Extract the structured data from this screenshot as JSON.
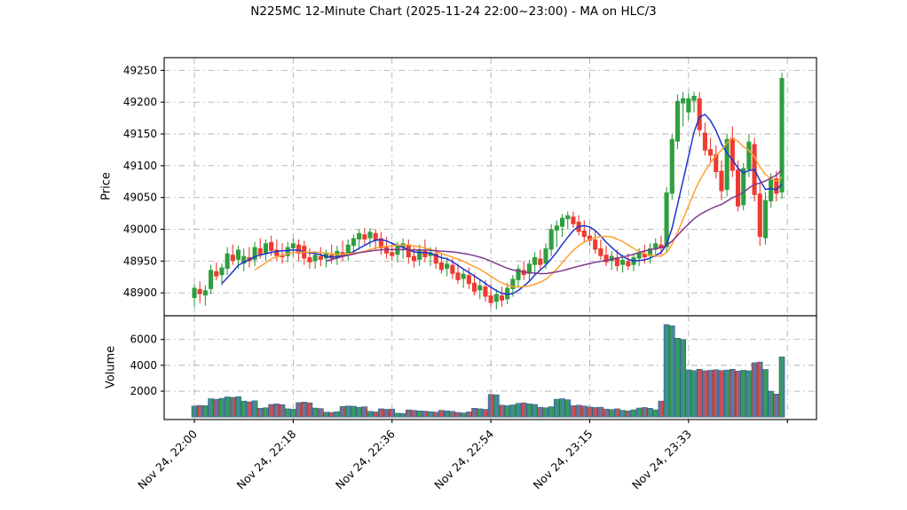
{
  "title": "N225MC 12-Minute Chart (2025-11-24 22:00~23:00) - MA on HLC/3",
  "chart_data": {
    "type": "candlestick",
    "title": "N225MC 12-Minute Chart (2025-11-24 22:00~23:00) - MA on HLC/3",
    "grid": true,
    "price_axis": {
      "label": "Price",
      "ticks": [
        48900,
        48950,
        49000,
        49050,
        49100,
        49150,
        49200,
        49250
      ],
      "ylim": [
        48864,
        49270
      ]
    },
    "volume_axis": {
      "label": "Volume",
      "ticks": [
        2000,
        4000,
        6000
      ],
      "ylim": [
        -190,
        7830
      ]
    },
    "x_axis": {
      "xlim": [
        -5.5,
        113.3
      ],
      "tick_indices": [
        0,
        18,
        36,
        54,
        72,
        90,
        108
      ],
      "tick_labels": [
        "Nov 24, 22:00",
        "Nov 24, 22:18",
        "Nov 24, 22:36",
        "Nov 24, 22:54",
        "Nov 24, 23:15",
        "Nov 24, 23:33",
        ""
      ]
    },
    "ma": {
      "source": "HLC/3",
      "windows": [
        6,
        12,
        25
      ]
    },
    "colors": {
      "up": "#2f9e3f",
      "down": "#ee3b31",
      "volume_fill": "#4a86b8",
      "volume_edge": "#27506e",
      "grid": "#b0b0b0",
      "axes": "#000000",
      "text": "#000000",
      "ma_lines": [
        "#1a35d0",
        "#ffa030",
        "#803a8c"
      ]
    },
    "candles_ohlc": [
      [
        48892,
        48914,
        48878,
        48908
      ],
      [
        48906,
        48918,
        48884,
        48898
      ],
      [
        48896,
        48912,
        48880,
        48904
      ],
      [
        48906,
        48944,
        48898,
        48936
      ],
      [
        48934,
        48948,
        48920,
        48926
      ],
      [
        48928,
        48946,
        48912,
        48940
      ],
      [
        48938,
        48972,
        48928,
        48962
      ],
      [
        48960,
        48976,
        48944,
        48950
      ],
      [
        48952,
        48974,
        48938,
        48968
      ],
      [
        48946,
        48970,
        48934,
        48958
      ],
      [
        48956,
        48972,
        48940,
        48950
      ],
      [
        48952,
        48980,
        48942,
        48972
      ],
      [
        48970,
        48986,
        48954,
        48960
      ],
      [
        48962,
        48984,
        48950,
        48978
      ],
      [
        48980,
        48990,
        48958,
        48966
      ],
      [
        48968,
        48984,
        48950,
        48958
      ],
      [
        48960,
        48978,
        48946,
        48956
      ],
      [
        48958,
        48980,
        48948,
        48972
      ],
      [
        48970,
        48986,
        48956,
        48978
      ],
      [
        48976,
        48984,
        48950,
        48962
      ],
      [
        48974,
        48982,
        48944,
        48954
      ],
      [
        48956,
        48970,
        48938,
        48948
      ],
      [
        48950,
        48966,
        48938,
        48960
      ],
      [
        48958,
        48972,
        48942,
        48952
      ],
      [
        48954,
        48968,
        48940,
        48962
      ],
      [
        48960,
        48976,
        48946,
        48954
      ],
      [
        48956,
        48974,
        48944,
        48966
      ],
      [
        48964,
        48982,
        48950,
        48958
      ],
      [
        48960,
        48984,
        48950,
        48976
      ],
      [
        48974,
        48992,
        48960,
        48986
      ],
      [
        48984,
        49000,
        48968,
        48994
      ],
      [
        48992,
        49002,
        48974,
        48984
      ],
      [
        48986,
        49002,
        48972,
        48996
      ],
      [
        48994,
        49000,
        48968,
        48982
      ],
      [
        48986,
        48996,
        48960,
        48970
      ],
      [
        48972,
        48988,
        48954,
        48962
      ],
      [
        48964,
        48980,
        48950,
        48958
      ],
      [
        48960,
        48980,
        48948,
        48974
      ],
      [
        48972,
        48986,
        48954,
        48978
      ],
      [
        48976,
        48984,
        48946,
        48956
      ],
      [
        48958,
        48972,
        48940,
        48950
      ],
      [
        48952,
        48976,
        48942,
        48968
      ],
      [
        48966,
        48984,
        48948,
        48956
      ],
      [
        48958,
        48972,
        48942,
        48964
      ],
      [
        48962,
        48972,
        48938,
        48946
      ],
      [
        48948,
        48962,
        48930,
        48936
      ],
      [
        48938,
        48956,
        48926,
        48946
      ],
      [
        48944,
        48954,
        48922,
        48930
      ],
      [
        48932,
        48946,
        48914,
        48920
      ],
      [
        48922,
        48938,
        48908,
        48930
      ],
      [
        48928,
        48940,
        48906,
        48914
      ],
      [
        48916,
        48930,
        48896,
        48902
      ],
      [
        48904,
        48922,
        48890,
        48912
      ],
      [
        48910,
        48920,
        48886,
        48894
      ],
      [
        48896,
        48914,
        48878,
        48884
      ],
      [
        48886,
        48906,
        48874,
        48898
      ],
      [
        48896,
        48910,
        48878,
        48888
      ],
      [
        48890,
        48916,
        48882,
        48908
      ],
      [
        48906,
        48928,
        48894,
        48922
      ],
      [
        48920,
        48944,
        48908,
        48938
      ],
      [
        48936,
        48950,
        48920,
        48928
      ],
      [
        48930,
        48952,
        48918,
        48946
      ],
      [
        48944,
        48964,
        48930,
        48956
      ],
      [
        48954,
        48968,
        48936,
        48944
      ],
      [
        48946,
        48978,
        48938,
        48970
      ],
      [
        48968,
        49008,
        48958,
        49000
      ],
      [
        48998,
        49014,
        48972,
        49006
      ],
      [
        49004,
        49024,
        48988,
        49018
      ],
      [
        49016,
        49028,
        49000,
        49022
      ],
      [
        49020,
        49028,
        49002,
        49008
      ],
      [
        49012,
        49022,
        48990,
        48996
      ],
      [
        48998,
        49014,
        48980,
        48988
      ],
      [
        48990,
        49004,
        48974,
        48982
      ],
      [
        48984,
        48998,
        48962,
        48968
      ],
      [
        48970,
        48984,
        48952,
        48958
      ],
      [
        48960,
        48974,
        48942,
        48948
      ],
      [
        48950,
        48966,
        48936,
        48958
      ],
      [
        48956,
        48968,
        48934,
        48942
      ],
      [
        48944,
        48960,
        48932,
        48952
      ],
      [
        48950,
        48962,
        48936,
        48942
      ],
      [
        48944,
        48962,
        48934,
        48956
      ],
      [
        48954,
        48970,
        48942,
        48964
      ],
      [
        48962,
        48976,
        48946,
        48956
      ],
      [
        48958,
        48978,
        48946,
        48970
      ],
      [
        48968,
        48986,
        48956,
        48978
      ],
      [
        48976,
        48990,
        48960,
        48970
      ],
      [
        48972,
        49066,
        48962,
        49058
      ],
      [
        49056,
        49150,
        49046,
        49142
      ],
      [
        49138,
        49212,
        49126,
        49202
      ],
      [
        49198,
        49216,
        49162,
        49206
      ],
      [
        49184,
        49214,
        49172,
        49206
      ],
      [
        49202,
        49216,
        49184,
        49210
      ],
      [
        49206,
        49216,
        49146,
        49156
      ],
      [
        49152,
        49168,
        49116,
        49124
      ],
      [
        49126,
        49144,
        49106,
        49116
      ],
      [
        49118,
        49132,
        49080,
        49090
      ],
      [
        49092,
        49108,
        49046,
        49060
      ],
      [
        49062,
        49150,
        49052,
        49142
      ],
      [
        49144,
        49162,
        49082,
        49092
      ],
      [
        49094,
        49108,
        49028,
        49036
      ],
      [
        49038,
        49104,
        49030,
        49096
      ],
      [
        49094,
        49150,
        49082,
        49138
      ],
      [
        49134,
        49144,
        49044,
        49054
      ],
      [
        49056,
        49072,
        48974,
        48988
      ],
      [
        48986,
        49058,
        48976,
        49046
      ],
      [
        49044,
        49088,
        49034,
        49078
      ],
      [
        49080,
        49092,
        49044,
        49056
      ],
      [
        49058,
        49246,
        49048,
        49238
      ]
    ],
    "volumes": [
      850,
      900,
      880,
      1420,
      1380,
      1450,
      1560,
      1520,
      1580,
      1240,
      1180,
      1260,
      680,
      720,
      980,
      1020,
      960,
      640,
      600,
      1120,
      1160,
      1100,
      700,
      660,
      380,
      360,
      420,
      820,
      860,
      840,
      760,
      800,
      440,
      400,
      640,
      600,
      620,
      300,
      280,
      560,
      520,
      480,
      460,
      420,
      380,
      520,
      480,
      440,
      360,
      320,
      400,
      680,
      640,
      600,
      1750,
      1720,
      920,
      880,
      940,
      1060,
      1100,
      1020,
      980,
      760,
      720,
      800,
      1380,
      1420,
      1340,
      880,
      920,
      860,
      780,
      740,
      760,
      620,
      580,
      640,
      520,
      480,
      560,
      700,
      740,
      680,
      560,
      1240,
      7150,
      7050,
      6100,
      6000,
      3650,
      3600,
      3700,
      3580,
      3620,
      3660,
      3600,
      3640,
      3700,
      3560,
      3620,
      3580,
      4200,
      4260,
      3680,
      2000,
      1780,
      4650
    ]
  }
}
